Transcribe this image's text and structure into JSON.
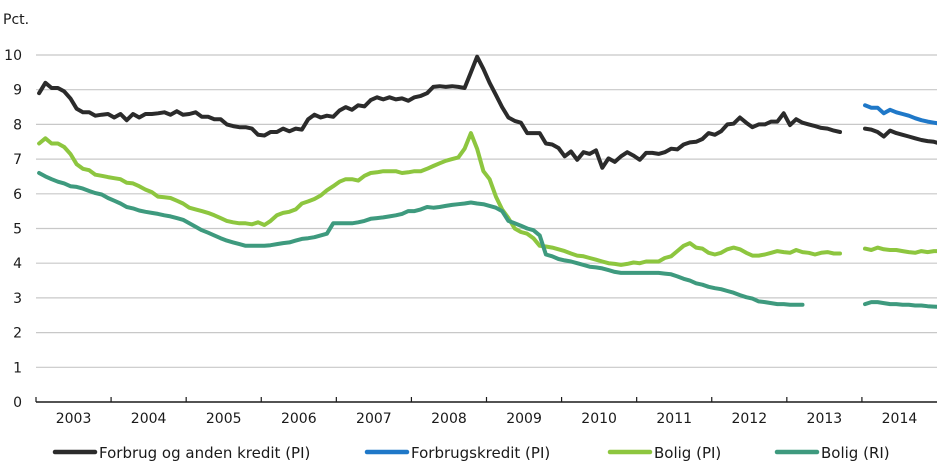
{
  "chart_data": {
    "type": "line",
    "title": "",
    "ylabel": "Pct.",
    "xlabel": "",
    "ylim": [
      0,
      10
    ],
    "yticks": [
      0,
      1,
      2,
      3,
      4,
      5,
      6,
      7,
      8,
      9,
      10
    ],
    "grid": true,
    "legend_position": "bottom",
    "x_start": "2003-01",
    "x_frequency": "monthly",
    "x_range": [
      "2003-01",
      "2014-12"
    ],
    "categories": [
      "2003",
      "2004",
      "2005",
      "2006",
      "2007",
      "2008",
      "2009",
      "2010",
      "2011",
      "2012",
      "2013",
      "2014"
    ],
    "series": [
      {
        "name": "Forbrug og anden kredit (PI)",
        "color": "#2b2b2b",
        "segments": [
          {
            "start": "2003-01",
            "values": [
              8.9,
              9.2,
              9.05,
              9.05,
              8.95,
              8.75,
              8.45,
              8.35,
              8.35,
              8.25,
              8.28,
              8.3,
              8.2,
              8.3,
              8.12,
              8.3,
              8.2,
              8.3,
              8.3,
              8.32,
              8.35,
              8.28,
              8.38,
              8.28,
              8.3,
              8.35,
              8.22,
              8.22,
              8.15,
              8.15,
              8.0,
              7.95,
              7.92,
              7.92,
              7.88,
              7.7,
              7.68,
              7.78,
              7.78,
              7.88,
              7.8,
              7.88,
              7.85,
              8.15,
              8.28,
              8.2,
              8.25,
              8.22,
              8.4,
              8.5,
              8.42,
              8.55,
              8.52,
              8.7,
              8.78,
              8.72,
              8.78,
              8.72,
              8.75,
              8.68,
              8.78,
              8.82,
              8.9,
              9.08,
              9.1,
              9.08,
              9.1,
              9.08,
              9.05,
              9.5,
              9.95,
              9.6,
              9.2,
              8.85,
              8.5,
              8.2,
              8.1,
              8.05,
              7.75,
              7.75,
              7.75,
              7.45,
              7.42,
              7.32,
              7.08,
              7.22,
              6.98,
              7.2,
              7.15,
              7.25,
              6.75,
              7.02,
              6.92,
              7.08,
              7.2,
              7.1,
              6.98,
              7.18,
              7.18,
              7.15,
              7.2,
              7.3,
              7.28,
              7.42,
              7.48,
              7.5,
              7.58,
              7.75,
              7.7,
              7.8,
              8.0,
              8.02,
              8.2,
              8.05,
              7.92,
              8.0,
              8.0,
              8.08,
              8.08,
              8.32,
              7.98,
              8.15,
              8.05,
              8.0,
              7.95,
              7.9,
              7.88,
              7.82,
              7.78
            ]
          },
          {
            "start": "2014-01",
            "values": [
              7.88,
              7.85,
              7.78,
              7.65,
              7.82,
              7.75,
              7.7,
              7.65,
              7.6,
              7.55,
              7.52,
              7.5,
              7.45,
              7.42
            ]
          }
        ]
      },
      {
        "name": "Forbrugskredit (PI)",
        "color": "#1f78c8",
        "segments": [
          {
            "start": "2014-01",
            "values": [
              8.55,
              8.48,
              8.48,
              8.32,
              8.42,
              8.35,
              8.3,
              8.25,
              8.18,
              8.12,
              8.08,
              8.05,
              8.02,
              7.98,
              7.92
            ]
          }
        ]
      },
      {
        "name": "Bolig (PI)",
        "color": "#8dc63f",
        "segments": [
          {
            "start": "2003-01",
            "values": [
              7.45,
              7.6,
              7.45,
              7.45,
              7.35,
              7.15,
              6.85,
              6.72,
              6.68,
              6.55,
              6.52,
              6.48,
              6.45,
              6.42,
              6.32,
              6.3,
              6.22,
              6.12,
              6.05,
              5.92,
              5.9,
              5.88,
              5.8,
              5.72,
              5.6,
              5.55,
              5.5,
              5.45,
              5.38,
              5.3,
              5.22,
              5.18,
              5.15,
              5.15,
              5.12,
              5.18,
              5.1,
              5.22,
              5.38,
              5.45,
              5.48,
              5.55,
              5.72,
              5.78,
              5.85,
              5.95,
              6.1,
              6.22,
              6.35,
              6.42,
              6.42,
              6.38,
              6.52,
              6.6,
              6.62,
              6.65,
              6.65,
              6.65,
              6.6,
              6.62,
              6.65,
              6.65,
              6.72,
              6.8,
              6.88,
              6.95,
              7.0,
              7.05,
              7.3,
              7.75,
              7.3,
              6.65,
              6.42,
              5.92,
              5.55,
              5.3,
              5.0,
              4.9,
              4.85,
              4.72,
              4.5,
              4.48,
              4.45,
              4.4,
              4.35,
              4.28,
              4.22,
              4.2,
              4.15,
              4.1,
              4.05,
              4.0,
              3.98,
              3.95,
              3.98,
              4.02,
              4.0,
              4.05,
              4.05,
              4.05,
              4.15,
              4.2,
              4.35,
              4.5,
              4.58,
              4.45,
              4.42,
              4.3,
              4.25,
              4.3,
              4.4,
              4.45,
              4.4,
              4.3,
              4.22,
              4.22,
              4.25,
              4.3,
              4.35,
              4.32,
              4.3,
              4.38,
              4.32,
              4.3,
              4.25,
              4.3,
              4.32,
              4.28,
              4.28
            ]
          },
          {
            "start": "2014-01",
            "values": [
              4.42,
              4.38,
              4.45,
              4.4,
              4.38,
              4.38,
              4.35,
              4.32,
              4.3,
              4.35,
              4.32,
              4.35,
              4.35,
              4.28,
              4.22
            ]
          }
        ]
      },
      {
        "name": "Bolig (RI)",
        "color": "#3e9a7e",
        "segments": [
          {
            "start": "2003-01",
            "values": [
              6.6,
              6.5,
              6.42,
              6.35,
              6.3,
              6.22,
              6.2,
              6.15,
              6.08,
              6.02,
              5.98,
              5.88,
              5.8,
              5.72,
              5.62,
              5.58,
              5.52,
              5.48,
              5.45,
              5.42,
              5.38,
              5.35,
              5.3,
              5.25,
              5.15,
              5.05,
              4.95,
              4.88,
              4.8,
              4.72,
              4.65,
              4.6,
              4.55,
              4.5,
              4.5,
              4.5,
              4.5,
              4.52,
              4.55,
              4.58,
              4.6,
              4.65,
              4.7,
              4.72,
              4.75,
              4.8,
              4.85,
              5.15,
              5.15,
              5.15,
              5.15,
              5.18,
              5.22,
              5.28,
              5.3,
              5.32,
              5.35,
              5.38,
              5.42,
              5.5,
              5.5,
              5.55,
              5.62,
              5.6,
              5.62,
              5.65,
              5.68,
              5.7,
              5.72,
              5.75,
              5.72,
              5.7,
              5.65,
              5.6,
              5.5,
              5.22,
              5.15,
              5.08,
              5.0,
              4.95,
              4.8,
              4.25,
              4.2,
              4.12,
              4.08,
              4.05,
              4.0,
              3.95,
              3.9,
              3.88,
              3.85,
              3.8,
              3.75,
              3.72,
              3.72,
              3.72,
              3.72,
              3.72,
              3.72,
              3.72,
              3.7,
              3.68,
              3.62,
              3.55,
              3.5,
              3.42,
              3.38,
              3.32,
              3.28,
              3.25,
              3.2,
              3.15,
              3.08,
              3.02,
              2.98,
              2.9,
              2.88,
              2.85,
              2.82,
              2.82,
              2.8,
              2.8,
              2.8
            ]
          },
          {
            "start": "2014-01",
            "values": [
              2.82,
              2.88,
              2.88,
              2.85,
              2.82,
              2.82,
              2.8,
              2.8,
              2.78,
              2.78,
              2.76,
              2.75,
              2.74,
              2.72
            ]
          }
        ]
      }
    ]
  }
}
